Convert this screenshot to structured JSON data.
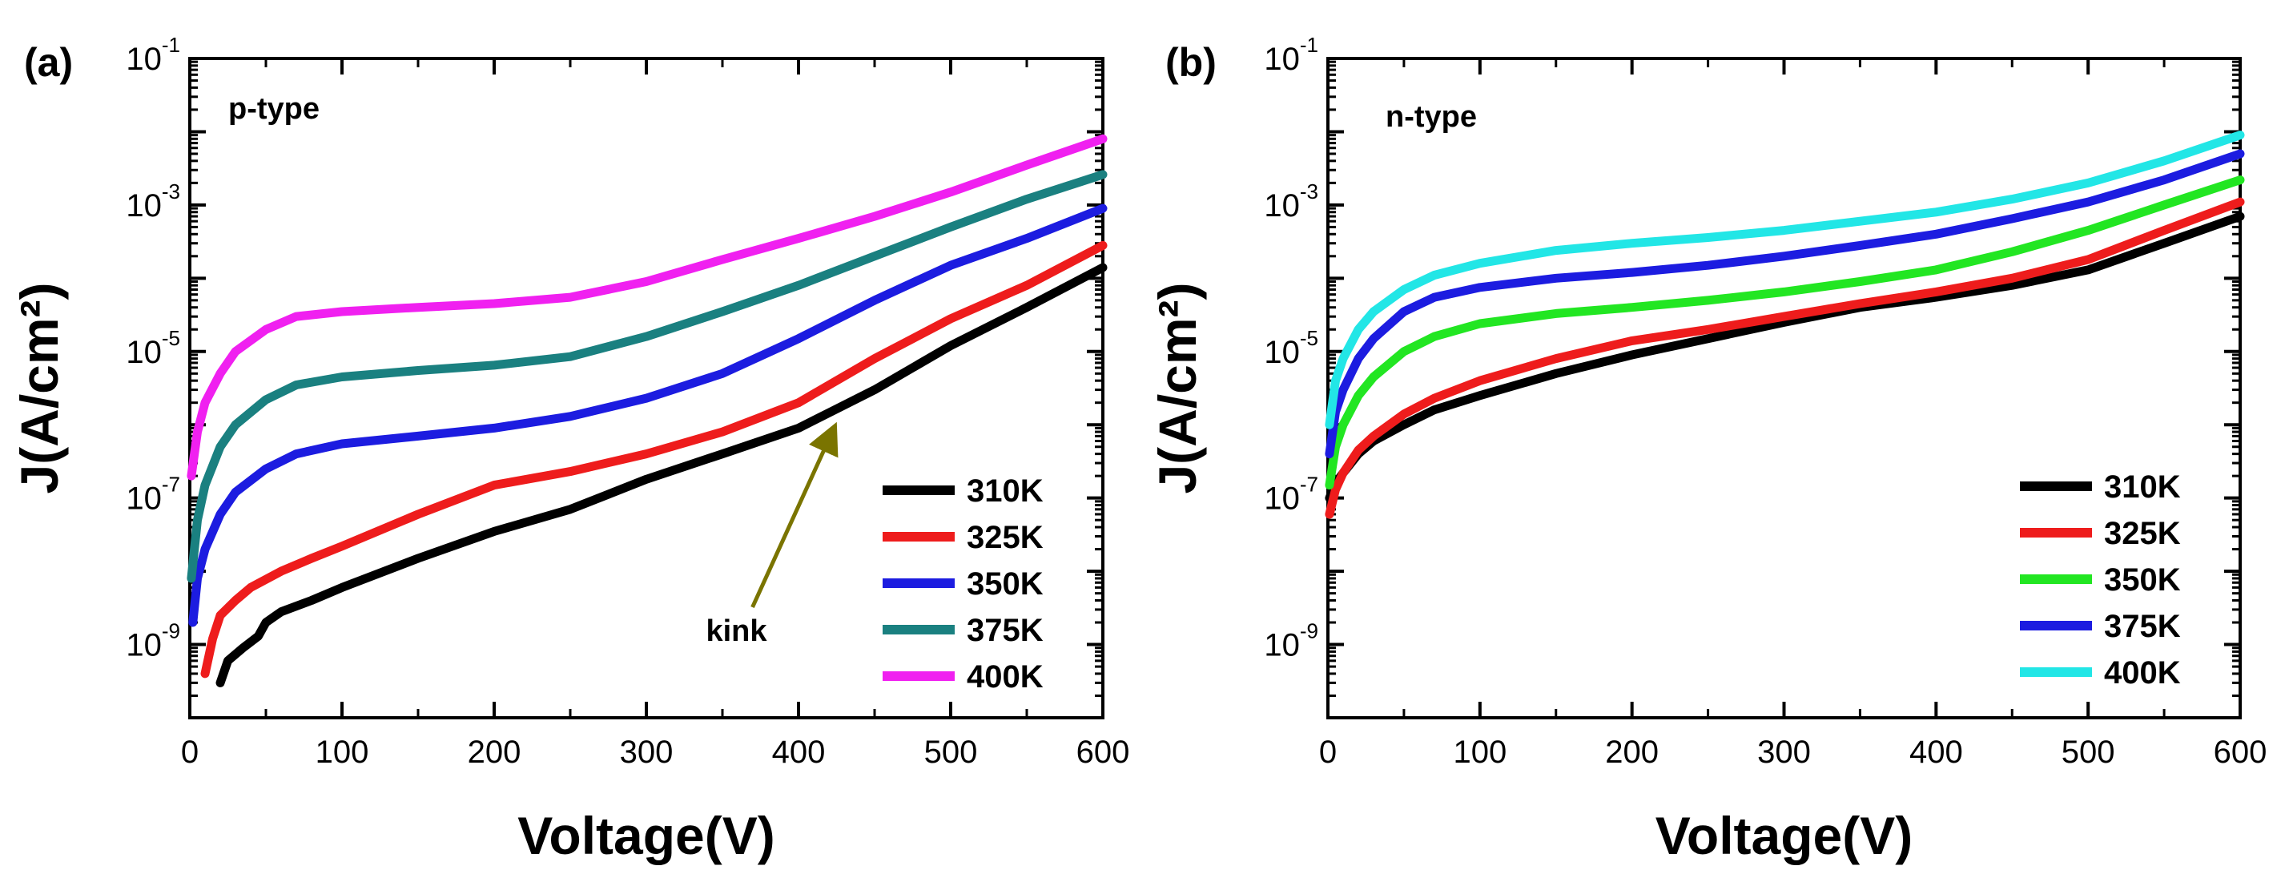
{
  "chart_data": [
    {
      "type": "line",
      "panel_label": "(a)",
      "annotation": "p-type",
      "xlabel": "Voltage(V)",
      "ylabel": "J(A/cm²)",
      "xscale": "linear",
      "yscale": "log",
      "xlim": [
        0,
        600
      ],
      "ylim": [
        1e-10,
        0.1
      ],
      "xticks": [
        "0",
        "100",
        "200",
        "300",
        "400",
        "500",
        "600"
      ],
      "yticks": [
        {
          "base": "10",
          "exp": "-1",
          "value": 0.1
        },
        {
          "base": "10",
          "exp": "-3",
          "value": 0.001
        },
        {
          "base": "10",
          "exp": "-5",
          "value": 1e-05
        },
        {
          "base": "10",
          "exp": "-7",
          "value": 1e-07
        },
        {
          "base": "10",
          "exp": "-9",
          "value": 1e-09
        }
      ],
      "legend_position": "bottom-right",
      "arrow_annotation": {
        "text": "kink",
        "points_to": {
          "x": 425,
          "y": 1.2e-06
        },
        "color": "#7a7400"
      },
      "series": [
        {
          "name": "310K",
          "color": "#000000",
          "x": [
            20,
            25,
            35,
            45,
            50,
            60,
            80,
            100,
            150,
            200,
            250,
            300,
            350,
            400,
            450,
            500,
            550,
            600
          ],
          "y": [
            3e-10,
            6e-10,
            9e-10,
            1.3e-09,
            2e-09,
            2.8e-09,
            4e-09,
            6e-09,
            1.5e-08,
            3.5e-08,
            7e-08,
            1.8e-07,
            4e-07,
            9e-07,
            3e-06,
            1.2e-05,
            4e-05,
            0.00014
          ]
        },
        {
          "name": "325K",
          "color": "#ee1c1c",
          "x": [
            10,
            15,
            20,
            30,
            40,
            60,
            80,
            100,
            150,
            200,
            250,
            300,
            350,
            400,
            450,
            500,
            550,
            600
          ],
          "y": [
            4e-10,
            1.2e-09,
            2.5e-09,
            4e-09,
            6e-09,
            1e-08,
            1.5e-08,
            2.2e-08,
            6e-08,
            1.5e-07,
            2.3e-07,
            4e-07,
            8e-07,
            2e-06,
            8e-06,
            2.8e-05,
            8e-05,
            0.00028
          ]
        },
        {
          "name": "350K",
          "color": "#1c1ce0",
          "x": [
            2,
            5,
            10,
            20,
            30,
            50,
            70,
            100,
            150,
            200,
            250,
            300,
            350,
            400,
            450,
            500,
            550,
            600
          ],
          "y": [
            2e-09,
            8e-09,
            2e-08,
            6e-08,
            1.2e-07,
            2.5e-07,
            4e-07,
            5.5e-07,
            7e-07,
            9e-07,
            1.3e-06,
            2.3e-06,
            5e-06,
            1.5e-05,
            5e-05,
            0.00015,
            0.00035,
            0.0009
          ]
        },
        {
          "name": "375K",
          "color": "#1a8080",
          "x": [
            1,
            5,
            10,
            20,
            30,
            50,
            70,
            100,
            150,
            200,
            250,
            300,
            350,
            400,
            450,
            500,
            550,
            600
          ],
          "y": [
            8e-09,
            5e-08,
            1.5e-07,
            5e-07,
            1e-06,
            2.2e-06,
            3.5e-06,
            4.5e-06,
            5.5e-06,
            6.5e-06,
            8.5e-06,
            1.6e-05,
            3.5e-05,
            8e-05,
            0.0002,
            0.0005,
            0.0012,
            0.0026
          ]
        },
        {
          "name": "400K",
          "color": "#f020f0",
          "x": [
            1,
            5,
            10,
            20,
            30,
            50,
            70,
            100,
            150,
            200,
            250,
            300,
            350,
            400,
            450,
            500,
            550,
            600
          ],
          "y": [
            2e-07,
            8e-07,
            2e-06,
            5e-06,
            1e-05,
            2e-05,
            3e-05,
            3.5e-05,
            4e-05,
            4.5e-05,
            5.5e-05,
            9e-05,
            0.00018,
            0.00035,
            0.0007,
            0.0015,
            0.0035,
            0.008
          ]
        }
      ]
    },
    {
      "type": "line",
      "panel_label": "(b)",
      "annotation": "n-type",
      "xlabel": "Voltage(V)",
      "ylabel": "J(A/cm²)",
      "xscale": "linear",
      "yscale": "log",
      "xlim": [
        0,
        600
      ],
      "ylim": [
        1e-10,
        0.1
      ],
      "xticks": [
        "0",
        "100",
        "200",
        "300",
        "400",
        "500",
        "600"
      ],
      "yticks": [
        {
          "base": "10",
          "exp": "-1",
          "value": 0.1
        },
        {
          "base": "10",
          "exp": "-3",
          "value": 0.001
        },
        {
          "base": "10",
          "exp": "-5",
          "value": 1e-05
        },
        {
          "base": "10",
          "exp": "-7",
          "value": 1e-07
        },
        {
          "base": "10",
          "exp": "-9",
          "value": 1e-09
        }
      ],
      "legend_position": "bottom-right",
      "series": [
        {
          "name": "310K",
          "color": "#000000",
          "x": [
            1,
            5,
            10,
            20,
            30,
            50,
            70,
            100,
            150,
            200,
            250,
            300,
            350,
            400,
            450,
            500,
            550,
            600
          ],
          "y": [
            1e-07,
            1.6e-07,
            2.2e-07,
            4e-07,
            6e-07,
            1e-06,
            1.6e-06,
            2.5e-06,
            5e-06,
            9e-06,
            1.5e-05,
            2.5e-05,
            4e-05,
            5.5e-05,
            8e-05,
            0.00013,
            0.0003,
            0.0007
          ]
        },
        {
          "name": "325K",
          "color": "#ee1c1c",
          "x": [
            1,
            5,
            10,
            20,
            30,
            50,
            70,
            100,
            150,
            200,
            250,
            300,
            350,
            400,
            450,
            500,
            550,
            600
          ],
          "y": [
            6e-08,
            1.3e-07,
            2.2e-07,
            4.5e-07,
            7e-07,
            1.4e-06,
            2.3e-06,
            4e-06,
            8e-06,
            1.4e-05,
            2e-05,
            3e-05,
            4.5e-05,
            6.5e-05,
            0.0001,
            0.00018,
            0.00045,
            0.0011
          ]
        },
        {
          "name": "350K",
          "color": "#22e622",
          "x": [
            1,
            5,
            10,
            20,
            30,
            50,
            70,
            100,
            150,
            200,
            250,
            300,
            350,
            400,
            450,
            500,
            550,
            600
          ],
          "y": [
            1.5e-07,
            5e-07,
            1e-06,
            2.5e-06,
            4.5e-06,
            1e-05,
            1.6e-05,
            2.4e-05,
            3.3e-05,
            4e-05,
            5e-05,
            6.5e-05,
            9e-05,
            0.00013,
            0.00023,
            0.00045,
            0.001,
            0.0022
          ]
        },
        {
          "name": "375K",
          "color": "#1c1ce0",
          "x": [
            1,
            5,
            10,
            20,
            30,
            50,
            70,
            100,
            150,
            200,
            250,
            300,
            350,
            400,
            450,
            500,
            550,
            600
          ],
          "y": [
            4e-07,
            1.5e-06,
            3e-06,
            8e-06,
            1.5e-05,
            3.5e-05,
            5.5e-05,
            7.5e-05,
            0.0001,
            0.00012,
            0.00015,
            0.0002,
            0.00028,
            0.0004,
            0.00065,
            0.0011,
            0.0022,
            0.005
          ]
        },
        {
          "name": "400K",
          "color": "#22e6e6",
          "x": [
            1,
            5,
            10,
            20,
            30,
            50,
            70,
            100,
            150,
            200,
            250,
            300,
            350,
            400,
            450,
            500,
            550,
            600
          ],
          "y": [
            1e-06,
            4e-06,
            8e-06,
            2e-05,
            3.5e-05,
            7e-05,
            0.00011,
            0.00016,
            0.00024,
            0.0003,
            0.00036,
            0.00045,
            0.0006,
            0.0008,
            0.0012,
            0.002,
            0.004,
            0.009
          ]
        }
      ]
    }
  ]
}
